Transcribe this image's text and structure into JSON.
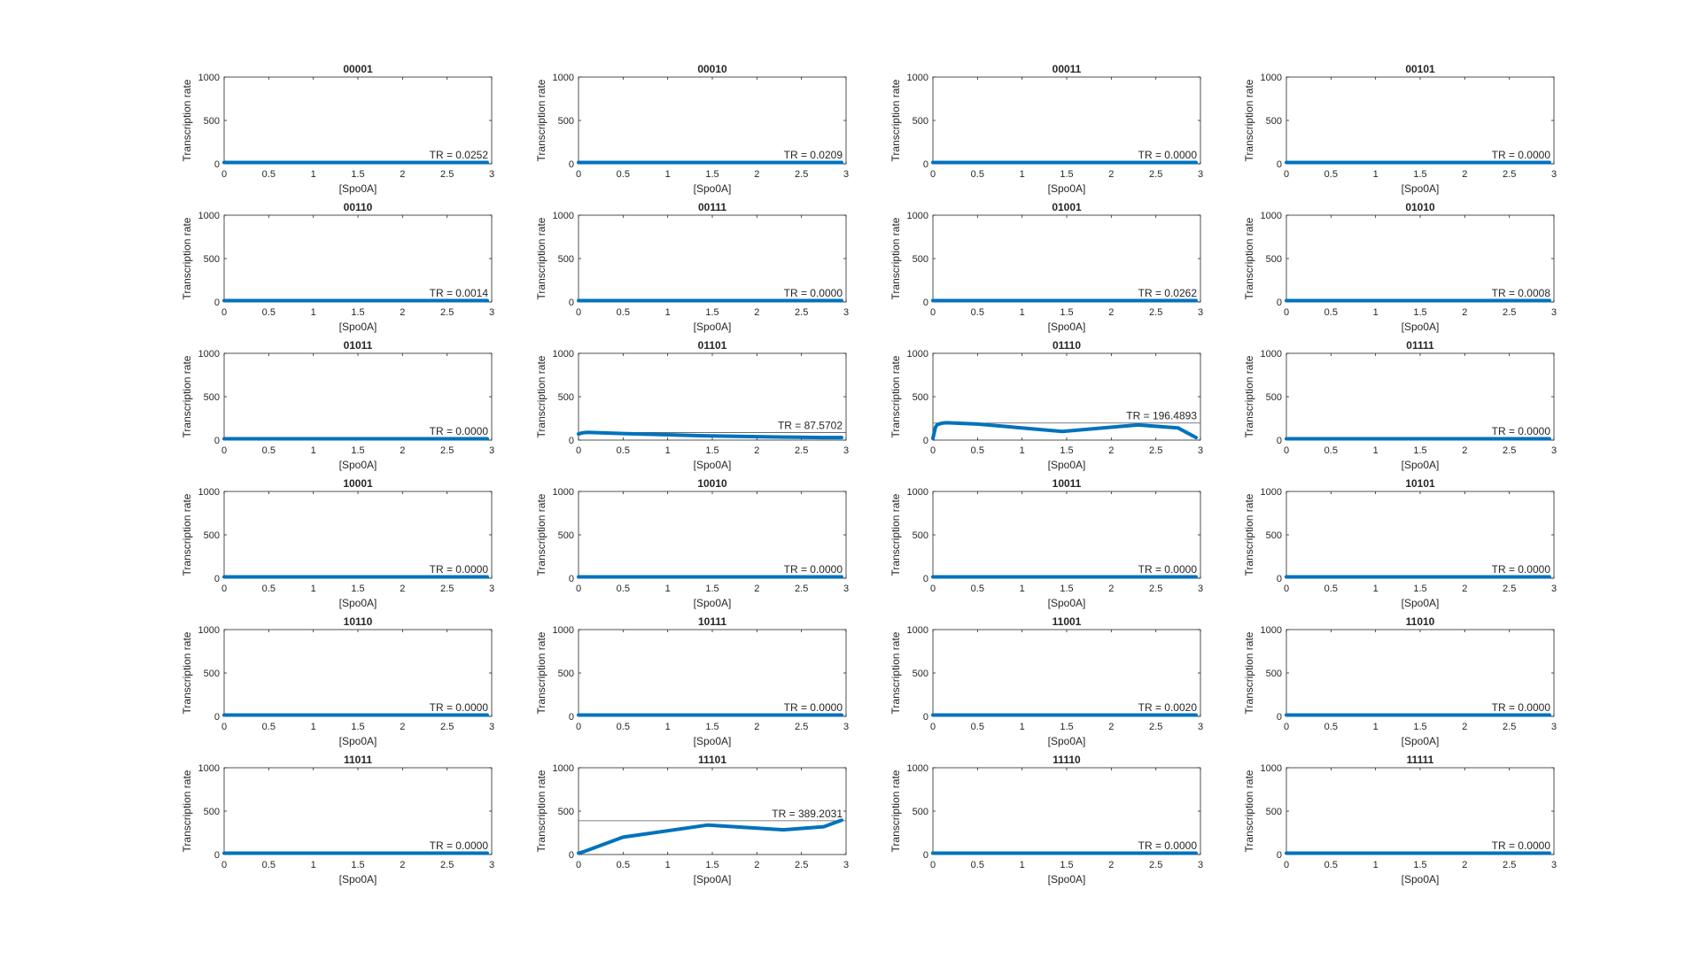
{
  "chart_data": {
    "type": "line",
    "layout": {
      "rows": 6,
      "cols": 4
    },
    "xlabel": "[Spo0A]",
    "ylabel": "Transcription rate",
    "xlim": [
      0,
      3
    ],
    "ylim": [
      0,
      1000
    ],
    "xticks": [
      0,
      0.5,
      1,
      1.5,
      2,
      2.5,
      3
    ],
    "xtick_labels": [
      "0",
      "0.5",
      "1",
      "1.5",
      "2",
      "2.5",
      "3"
    ],
    "yticks": [
      0,
      500,
      1000
    ],
    "ytick_labels": [
      "0",
      "500",
      "1000"
    ],
    "line_color": "#0072BD",
    "ref_line_color": "#555555",
    "grid": false,
    "panels": [
      {
        "title": "00001",
        "tr_label": "TR = 0.0252",
        "tr": 0.0252,
        "x": [
          0,
          2.95
        ],
        "y": [
          0,
          0
        ]
      },
      {
        "title": "00010",
        "tr_label": "TR = 0.0209",
        "tr": 0.0209,
        "x": [
          0,
          2.95
        ],
        "y": [
          0,
          0
        ]
      },
      {
        "title": "00011",
        "tr_label": "TR = 0.0000",
        "tr": 0,
        "x": [
          0,
          2.95
        ],
        "y": [
          0,
          0
        ]
      },
      {
        "title": "00101",
        "tr_label": "TR = 0.0000",
        "tr": 0,
        "x": [
          0,
          2.95
        ],
        "y": [
          0,
          0
        ]
      },
      {
        "title": "00110",
        "tr_label": "TR = 0.0014",
        "tr": 0.0014,
        "x": [
          0,
          2.95
        ],
        "y": [
          0,
          0
        ]
      },
      {
        "title": "00111",
        "tr_label": "TR = 0.0000",
        "tr": 0,
        "x": [
          0,
          2.95
        ],
        "y": [
          0,
          0
        ]
      },
      {
        "title": "01001",
        "tr_label": "TR = 0.0262",
        "tr": 0.0262,
        "x": [
          0,
          2.95
        ],
        "y": [
          0,
          0
        ]
      },
      {
        "title": "01010",
        "tr_label": "TR = 0.0008",
        "tr": 0.0008,
        "x": [
          0,
          2.95
        ],
        "y": [
          0,
          0
        ]
      },
      {
        "title": "01011",
        "tr_label": "TR = 0.0000",
        "tr": 0,
        "x": [
          0,
          2.95
        ],
        "y": [
          0,
          0
        ]
      },
      {
        "title": "01101",
        "tr_label": "TR = 87.5702",
        "tr": 87.5702,
        "x": [
          0,
          0.05,
          0.1,
          0.5,
          1.4,
          2.3,
          2.75,
          2.95
        ],
        "y": [
          70,
          85,
          90,
          75,
          50,
          35,
          30,
          30
        ]
      },
      {
        "title": "01110",
        "tr_label": "TR = 196.4893",
        "tr": 196.4893,
        "x": [
          0,
          0.03,
          0.05,
          0.1,
          0.15,
          0.5,
          1.45,
          2.3,
          2.75,
          2.95
        ],
        "y": [
          20,
          150,
          180,
          195,
          200,
          185,
          100,
          175,
          140,
          30
        ]
      },
      {
        "title": "01111",
        "tr_label": "TR = 0.0000",
        "tr": 0,
        "x": [
          0,
          2.95
        ],
        "y": [
          0,
          0
        ]
      },
      {
        "title": "10001",
        "tr_label": "TR = 0.0000",
        "tr": 0,
        "x": [
          0,
          2.95
        ],
        "y": [
          0,
          0
        ]
      },
      {
        "title": "10010",
        "tr_label": "TR = 0.0000",
        "tr": 0,
        "x": [
          0,
          2.95
        ],
        "y": [
          0,
          0
        ]
      },
      {
        "title": "10011",
        "tr_label": "TR = 0.0000",
        "tr": 0,
        "x": [
          0,
          2.95
        ],
        "y": [
          0,
          0
        ]
      },
      {
        "title": "10101",
        "tr_label": "TR = 0.0000",
        "tr": 0,
        "x": [
          0,
          2.95
        ],
        "y": [
          0,
          0
        ]
      },
      {
        "title": "10110",
        "tr_label": "TR = 0.0000",
        "tr": 0,
        "x": [
          0,
          2.95
        ],
        "y": [
          0,
          0
        ]
      },
      {
        "title": "10111",
        "tr_label": "TR = 0.0000",
        "tr": 0,
        "x": [
          0,
          2.95
        ],
        "y": [
          0,
          0
        ]
      },
      {
        "title": "11001",
        "tr_label": "TR = 0.0020",
        "tr": 0.002,
        "x": [
          0,
          2.95
        ],
        "y": [
          0,
          0
        ]
      },
      {
        "title": "11010",
        "tr_label": "TR = 0.0000",
        "tr": 0,
        "x": [
          0,
          2.95
        ],
        "y": [
          0,
          0
        ]
      },
      {
        "title": "11011",
        "tr_label": "TR = 0.0000",
        "tr": 0,
        "x": [
          0,
          2.95
        ],
        "y": [
          0,
          0
        ]
      },
      {
        "title": "11101",
        "tr_label": "TR = 389.2031",
        "tr": 389.2031,
        "x": [
          0,
          0.05,
          0.5,
          1.45,
          2.3,
          2.75,
          2.95
        ],
        "y": [
          5,
          30,
          200,
          340,
          285,
          320,
          395
        ]
      },
      {
        "title": "11110",
        "tr_label": "TR = 0.0000",
        "tr": 0,
        "x": [
          0,
          2.95
        ],
        "y": [
          0,
          0
        ]
      },
      {
        "title": "11111",
        "tr_label": "TR = 0.0000",
        "tr": 0,
        "x": [
          0,
          2.95
        ],
        "y": [
          0,
          0
        ]
      }
    ]
  }
}
